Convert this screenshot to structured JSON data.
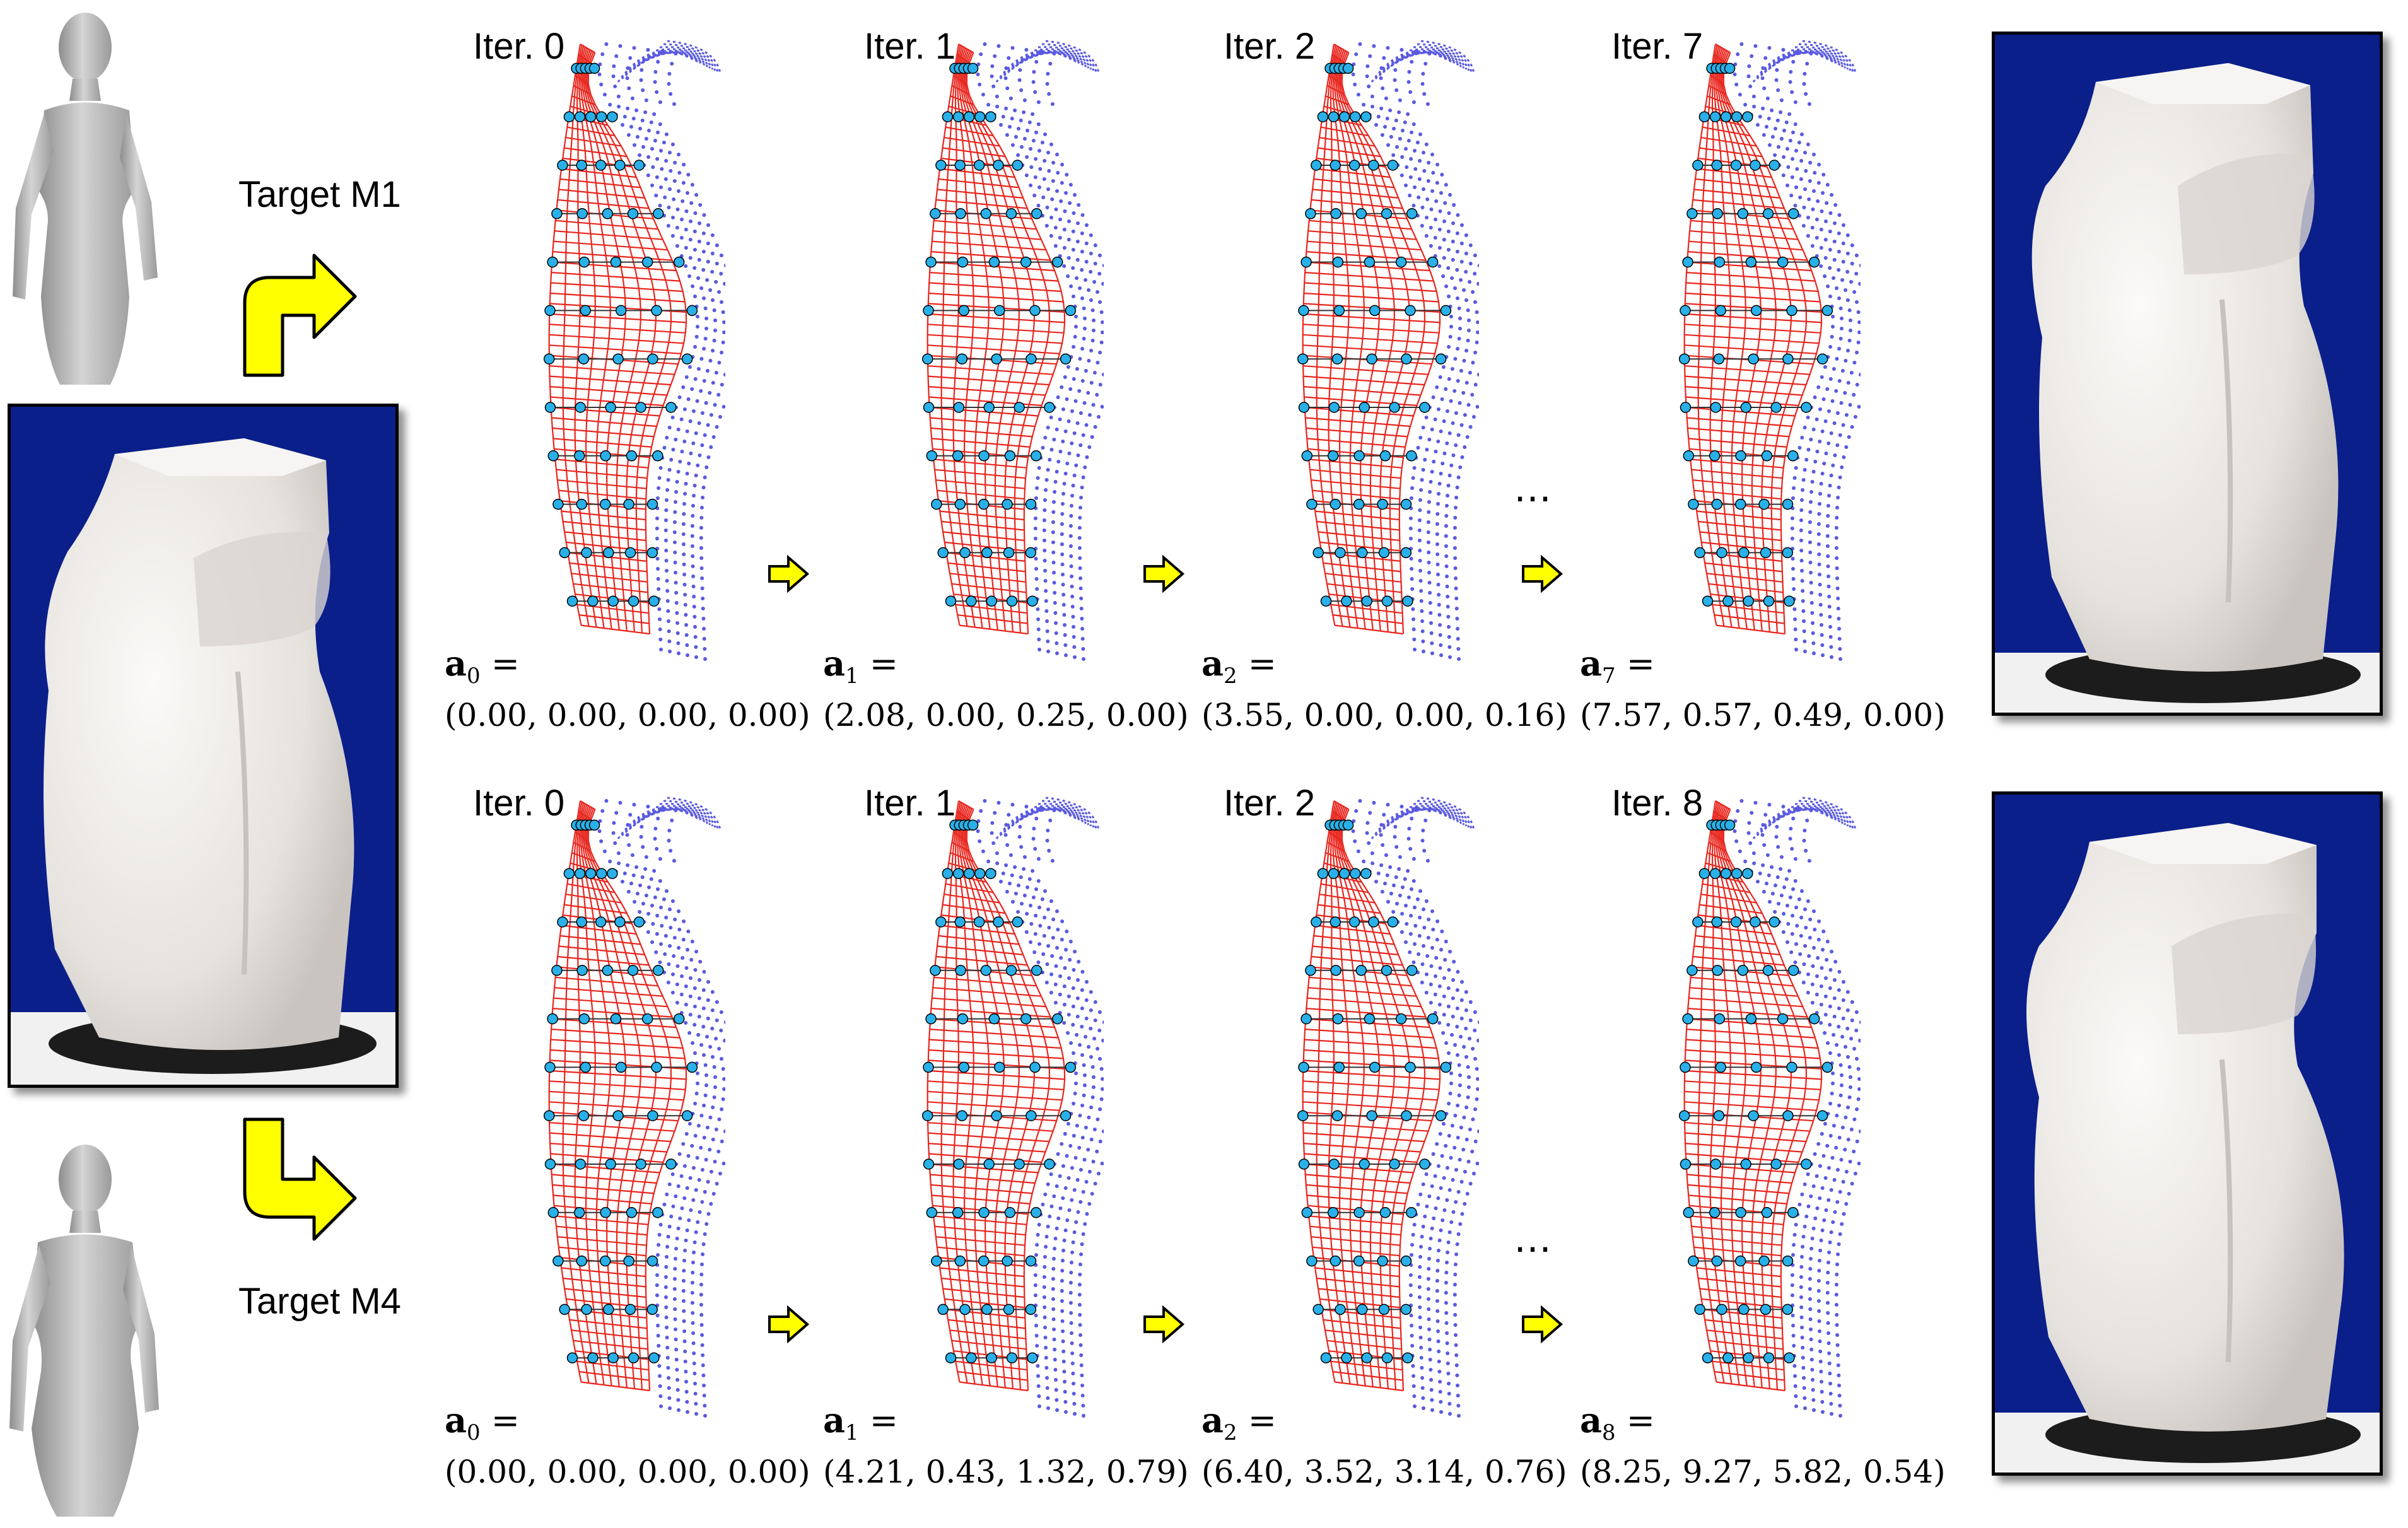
{
  "targets": [
    {
      "label": "Target M1"
    },
    {
      "label": "Target M4"
    }
  ],
  "rows": [
    {
      "iterations": [
        {
          "iter_label": "Iter. 0",
          "param_symbol": "a",
          "param_index": "0",
          "param_values": "(0.00, 0.00, 0.00, 0.00)"
        },
        {
          "iter_label": "Iter. 1",
          "param_symbol": "a",
          "param_index": "1",
          "param_values": "(2.08, 0.00, 0.25, 0.00)"
        },
        {
          "iter_label": "Iter. 2",
          "param_symbol": "a",
          "param_index": "2",
          "param_values": "(3.55, 0.00, 0.00, 0.16)"
        },
        {
          "iter_label": "Iter. 7",
          "param_symbol": "a",
          "param_index": "7",
          "param_values": "(7.57, 0.57, 0.49, 0.00)"
        }
      ],
      "ellipsis": "…",
      "equals": " ="
    },
    {
      "iterations": [
        {
          "iter_label": "Iter. 0",
          "param_symbol": "a",
          "param_index": "0",
          "param_values": "(0.00, 0.00, 0.00, 0.00)"
        },
        {
          "iter_label": "Iter. 1",
          "param_symbol": "a",
          "param_index": "1",
          "param_values": "(4.21, 0.43, 1.32, 0.79)"
        },
        {
          "iter_label": "Iter. 2",
          "param_symbol": "a",
          "param_index": "2",
          "param_values": "(6.40, 3.52, 3.14, 0.76)"
        },
        {
          "iter_label": "Iter. 8",
          "param_symbol": "a",
          "param_index": "8",
          "param_values": "(8.25, 9.27, 5.82, 0.54)"
        }
      ],
      "ellipsis": "…",
      "equals": " ="
    }
  ],
  "colors": {
    "arrow_fill": "#ffff00",
    "arrow_stroke": "#000000",
    "mesh_red": "#e8261e",
    "cloud_blue": "#5a5ae0",
    "node_cyan": "#2ab0e8",
    "photo_bg": "#0a1f8c",
    "foam": "#ece9e6"
  }
}
